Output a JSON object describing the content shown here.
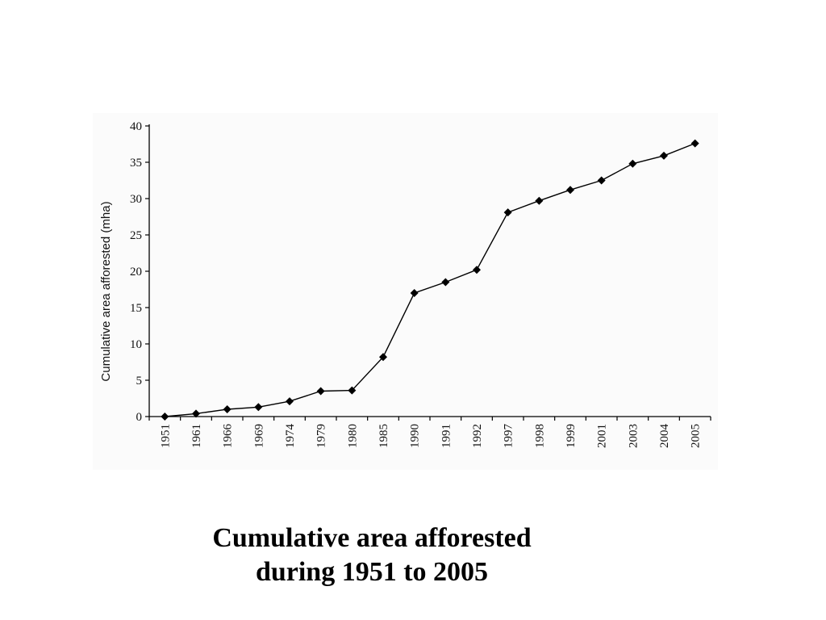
{
  "chart_data": {
    "type": "line",
    "title": "",
    "xlabel": "",
    "ylabel": "Cumulative area afforested (mha)",
    "categories": [
      "1951",
      "1961",
      "1966",
      "1969",
      "1974",
      "1979",
      "1980",
      "1985",
      "1990",
      "1991",
      "1992",
      "1997",
      "1998",
      "1999",
      "2001",
      "2003",
      "2004",
      "2005"
    ],
    "values": [
      0,
      0.4,
      1.0,
      1.3,
      2.1,
      3.5,
      3.6,
      8.2,
      17.0,
      18.5,
      20.2,
      28.1,
      29.7,
      31.2,
      32.5,
      34.8,
      35.9,
      37.6
    ],
    "ylim": [
      0,
      40
    ],
    "yticks": [
      0,
      5,
      10,
      15,
      20,
      25,
      30,
      35,
      40
    ],
    "grid": false,
    "marker": "diamond",
    "line_color": "#000000"
  },
  "caption": {
    "line1": "Cumulative area afforested",
    "line2": "during 1951 to 2005"
  }
}
